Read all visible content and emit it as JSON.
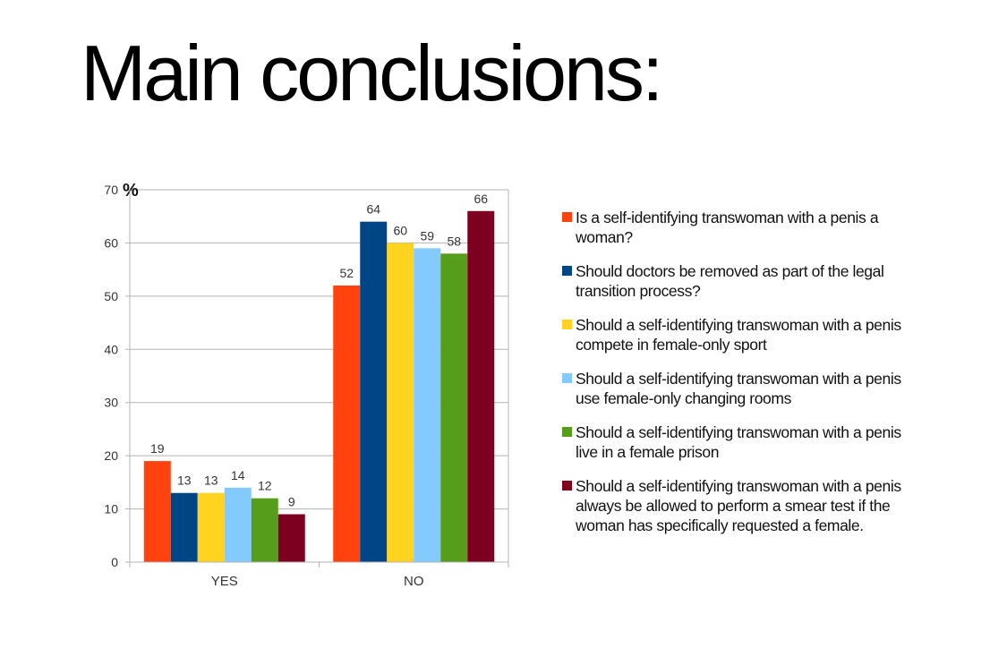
{
  "slide": {
    "title": "Main conclusions:"
  },
  "chart_data": {
    "type": "bar",
    "unit_label": "%",
    "ylim": [
      0,
      70
    ],
    "yticks": [
      0,
      10,
      20,
      30,
      40,
      50,
      60,
      70
    ],
    "categories": [
      "YES",
      "NO"
    ],
    "grid": true,
    "legend_position": "right",
    "series": [
      {
        "name": "Is a self-identifying transwoman with a penis a woman?",
        "color": "#ff420e",
        "values": [
          19,
          52
        ]
      },
      {
        "name": "Should doctors be removed as part of the legal transition process?",
        "color": "#004586",
        "values": [
          13,
          64
        ]
      },
      {
        "name": "Should a self-identifying transwoman with a penis compete in female-only sport",
        "color": "#ffd320",
        "values": [
          13,
          60
        ]
      },
      {
        "name": "Should a self-identifying transwoman with a penis use female-only changing rooms",
        "color": "#83caff",
        "values": [
          14,
          59
        ]
      },
      {
        "name": "Should a self-identifying transwoman with a penis live in a female prison",
        "color": "#579d1c",
        "values": [
          12,
          58
        ]
      },
      {
        "name": "Should a self-identifying transwoman with a penis always be allowed to perform a smear test if the woman has specifically requested a female.",
        "color": "#7e0021",
        "values": [
          9,
          66
        ]
      }
    ]
  }
}
